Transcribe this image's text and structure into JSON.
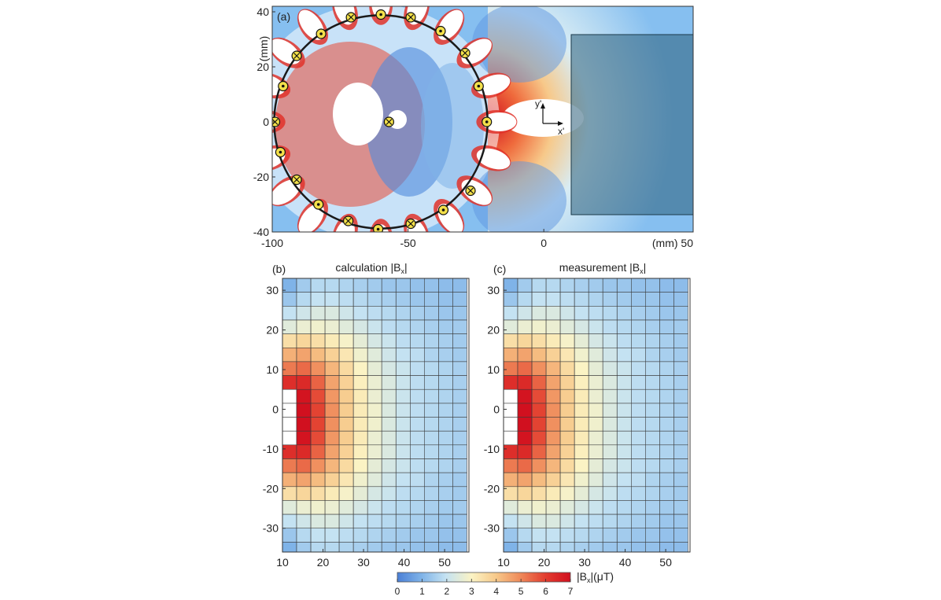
{
  "chart_data": [
    {
      "type": "heatmap",
      "panel_label": "(a)",
      "x_ticks": [
        "-100",
        "-50",
        "0"
      ],
      "x_unit_label": "(mm) 50",
      "y_ticks": [
        "40",
        "20",
        "0",
        "-20",
        "-40"
      ],
      "y_unit_label": "(mm)",
      "xlim": [
        -100,
        55
      ],
      "ylim": [
        -40,
        42
      ],
      "ring": {
        "center": [
          -60,
          0
        ],
        "radius": 39
      },
      "coil_markers": [
        {
          "x": -60,
          "y": 39,
          "kind": "dot"
        },
        {
          "x": -49,
          "y": 38,
          "kind": "cross"
        },
        {
          "x": -38,
          "y": 33,
          "kind": "dot"
        },
        {
          "x": -29,
          "y": 25,
          "kind": "cross"
        },
        {
          "x": -24,
          "y": 13,
          "kind": "dot"
        },
        {
          "x": -21,
          "y": 0,
          "kind": "dot"
        },
        {
          "x": -27,
          "y": -25,
          "kind": "cross"
        },
        {
          "x": -37,
          "y": -32,
          "kind": "dot"
        },
        {
          "x": -49,
          "y": -37,
          "kind": "cross"
        },
        {
          "x": -61,
          "y": -39,
          "kind": "dot"
        },
        {
          "x": -72,
          "y": -36,
          "kind": "cross"
        },
        {
          "x": -83,
          "y": -30,
          "kind": "dot"
        },
        {
          "x": -91,
          "y": -21,
          "kind": "cross"
        },
        {
          "x": -97,
          "y": -11,
          "kind": "dot"
        },
        {
          "x": -99,
          "y": 0,
          "kind": "cross"
        },
        {
          "x": -96,
          "y": 13,
          "kind": "dot"
        },
        {
          "x": -91,
          "y": 24,
          "kind": "cross"
        },
        {
          "x": -82,
          "y": 32,
          "kind": "dot"
        },
        {
          "x": -71,
          "y": 38,
          "kind": "cross"
        },
        {
          "x": -57,
          "y": 0,
          "kind": "cross"
        }
      ],
      "region_box": {
        "x": [
          10,
          55
        ],
        "y": [
          -34,
          32
        ]
      },
      "axis_labels_local": {
        "y": "y'",
        "x": "x'"
      }
    },
    {
      "type": "heatmap",
      "panel_label": "(b)",
      "title": "calculation |B",
      "title_sub": "x",
      "title_end": "|",
      "x_ticks": [
        10,
        20,
        30,
        40,
        50
      ],
      "y_ticks": [
        30,
        20,
        10,
        0,
        -10,
        -20,
        -30
      ],
      "xlim": [
        10,
        56
      ],
      "ylim": [
        -36,
        33
      ],
      "cell_size": 3.5,
      "values": [
        [
          1.0,
          1.5,
          1.8,
          1.8,
          1.7,
          1.6,
          1.5,
          1.4,
          1.4,
          1.3,
          1.3,
          1.2,
          1.2
        ],
        [
          1.4,
          1.8,
          2.0,
          2.0,
          1.9,
          1.8,
          1.7,
          1.6,
          1.5,
          1.4,
          1.4,
          1.3,
          1.3
        ],
        [
          2.0,
          2.2,
          2.4,
          2.4,
          2.2,
          2.0,
          1.9,
          1.8,
          1.7,
          1.6,
          1.5,
          1.4,
          1.4
        ],
        [
          2.5,
          2.7,
          2.8,
          2.7,
          2.5,
          2.3,
          2.1,
          1.9,
          1.8,
          1.7,
          1.6,
          1.5,
          1.5
        ],
        [
          3.5,
          3.7,
          3.5,
          3.2,
          2.9,
          2.6,
          2.3,
          2.1,
          1.9,
          1.8,
          1.7,
          1.6,
          1.5
        ],
        [
          4.4,
          4.6,
          4.2,
          3.8,
          3.3,
          2.8,
          2.5,
          2.2,
          2.0,
          1.9,
          1.7,
          1.6,
          1.5
        ],
        [
          5.2,
          5.4,
          4.9,
          4.3,
          3.6,
          3.0,
          2.6,
          2.3,
          2.1,
          1.9,
          1.8,
          1.7,
          1.6
        ],
        [
          6.3,
          6.4,
          5.5,
          4.6,
          3.8,
          3.1,
          2.7,
          2.4,
          2.1,
          1.9,
          1.8,
          1.7,
          1.6
        ],
        [
          null,
          6.9,
          5.8,
          4.8,
          3.9,
          3.2,
          2.7,
          2.4,
          2.1,
          1.9,
          1.8,
          1.7,
          1.6
        ],
        [
          null,
          7.0,
          5.9,
          4.9,
          3.9,
          3.2,
          2.8,
          2.4,
          2.1,
          1.9,
          1.8,
          1.7,
          1.6
        ],
        [
          null,
          7.0,
          5.9,
          4.9,
          3.9,
          3.2,
          2.8,
          2.4,
          2.1,
          1.9,
          1.8,
          1.7,
          1.6
        ],
        [
          null,
          6.9,
          5.8,
          4.8,
          3.9,
          3.2,
          2.7,
          2.4,
          2.1,
          1.9,
          1.8,
          1.7,
          1.6
        ],
        [
          6.3,
          6.4,
          5.5,
          4.6,
          3.8,
          3.1,
          2.7,
          2.4,
          2.1,
          1.9,
          1.8,
          1.7,
          1.6
        ],
        [
          5.2,
          5.4,
          4.9,
          4.3,
          3.6,
          3.0,
          2.6,
          2.3,
          2.1,
          1.9,
          1.8,
          1.7,
          1.6
        ],
        [
          4.4,
          4.6,
          4.2,
          3.8,
          3.3,
          2.8,
          2.5,
          2.2,
          2.0,
          1.9,
          1.7,
          1.6,
          1.5
        ],
        [
          3.5,
          3.7,
          3.5,
          3.2,
          2.9,
          2.6,
          2.3,
          2.1,
          1.9,
          1.8,
          1.7,
          1.6,
          1.5
        ],
        [
          2.5,
          2.7,
          2.8,
          2.7,
          2.5,
          2.3,
          2.1,
          1.9,
          1.8,
          1.7,
          1.6,
          1.5,
          1.5
        ],
        [
          2.0,
          2.2,
          2.4,
          2.4,
          2.2,
          2.0,
          1.9,
          1.8,
          1.7,
          1.6,
          1.5,
          1.4,
          1.4
        ],
        [
          1.4,
          1.8,
          2.0,
          2.0,
          1.9,
          1.8,
          1.7,
          1.6,
          1.5,
          1.4,
          1.4,
          1.3,
          1.3
        ],
        [
          1.0,
          1.5,
          1.8,
          1.8,
          1.7,
          1.6,
          1.5,
          1.4,
          1.4,
          1.3,
          1.3,
          1.2,
          1.2
        ]
      ]
    },
    {
      "type": "heatmap",
      "panel_label": "(c)",
      "title": "measurement |B",
      "title_sub": "x",
      "title_end": "|",
      "x_ticks": [
        10,
        20,
        30,
        40,
        50
      ],
      "y_ticks": [
        30,
        20,
        10,
        0,
        -10,
        -20,
        -30
      ],
      "xlim": [
        10,
        56
      ],
      "ylim": [
        -36,
        33
      ],
      "cell_size": 3.5,
      "values": [
        [
          1.0,
          1.5,
          1.8,
          1.8,
          1.7,
          1.6,
          1.5,
          1.4,
          1.4,
          1.3,
          1.3,
          1.2,
          1.2
        ],
        [
          1.4,
          1.8,
          2.0,
          2.0,
          1.9,
          1.8,
          1.7,
          1.6,
          1.5,
          1.4,
          1.4,
          1.3,
          1.3
        ],
        [
          2.0,
          2.2,
          2.4,
          2.4,
          2.2,
          2.0,
          1.9,
          1.8,
          1.7,
          1.6,
          1.5,
          1.4,
          1.4
        ],
        [
          2.5,
          2.7,
          2.8,
          2.7,
          2.5,
          2.3,
          2.1,
          1.9,
          1.8,
          1.7,
          1.6,
          1.5,
          1.5
        ],
        [
          3.5,
          3.7,
          3.5,
          3.2,
          2.9,
          2.6,
          2.3,
          2.1,
          1.9,
          1.8,
          1.7,
          1.6,
          1.5
        ],
        [
          4.4,
          4.6,
          4.2,
          3.8,
          3.3,
          2.8,
          2.5,
          2.2,
          2.0,
          1.9,
          1.7,
          1.6,
          1.5
        ],
        [
          5.2,
          5.4,
          4.9,
          4.3,
          3.6,
          3.0,
          2.6,
          2.3,
          2.1,
          1.9,
          1.8,
          1.7,
          1.6
        ],
        [
          6.3,
          6.4,
          5.5,
          4.6,
          3.8,
          3.1,
          2.7,
          2.4,
          2.1,
          1.9,
          1.8,
          1.7,
          1.6
        ],
        [
          null,
          6.9,
          5.8,
          4.8,
          3.9,
          3.2,
          2.7,
          2.4,
          2.1,
          1.9,
          1.8,
          1.7,
          1.6
        ],
        [
          null,
          7.0,
          5.9,
          4.9,
          3.9,
          3.2,
          2.8,
          2.4,
          2.1,
          1.9,
          1.8,
          1.7,
          1.6
        ],
        [
          null,
          7.0,
          5.9,
          4.9,
          3.9,
          3.2,
          2.8,
          2.4,
          2.1,
          1.9,
          1.8,
          1.7,
          1.6
        ],
        [
          null,
          6.9,
          5.8,
          4.8,
          3.9,
          3.2,
          2.7,
          2.4,
          2.1,
          1.9,
          1.8,
          1.7,
          1.6
        ],
        [
          6.3,
          6.4,
          5.5,
          4.6,
          3.8,
          3.1,
          2.7,
          2.4,
          2.1,
          1.9,
          1.8,
          1.7,
          1.6
        ],
        [
          5.2,
          5.4,
          4.9,
          4.3,
          3.6,
          3.0,
          2.6,
          2.3,
          2.1,
          1.9,
          1.8,
          1.7,
          1.6
        ],
        [
          4.4,
          4.6,
          4.2,
          3.8,
          3.3,
          2.8,
          2.5,
          2.2,
          2.0,
          1.9,
          1.7,
          1.6,
          1.5
        ],
        [
          3.5,
          3.7,
          3.5,
          3.2,
          2.9,
          2.6,
          2.3,
          2.1,
          1.9,
          1.8,
          1.7,
          1.6,
          1.5
        ],
        [
          2.5,
          2.7,
          2.8,
          2.7,
          2.5,
          2.3,
          2.1,
          1.9,
          1.8,
          1.7,
          1.6,
          1.5,
          1.5
        ],
        [
          2.0,
          2.2,
          2.4,
          2.4,
          2.2,
          2.0,
          1.9,
          1.8,
          1.7,
          1.6,
          1.5,
          1.4,
          1.4
        ],
        [
          1.4,
          1.8,
          2.0,
          2.0,
          1.9,
          1.8,
          1.7,
          1.6,
          1.5,
          1.4,
          1.4,
          1.3,
          1.3
        ],
        [
          1.0,
          1.5,
          1.8,
          1.8,
          1.7,
          1.6,
          1.5,
          1.4,
          1.4,
          1.3,
          1.3,
          1.2,
          1.2
        ]
      ]
    }
  ],
  "colorbar": {
    "ticks": [
      "0",
      "1",
      "2",
      "3",
      "4",
      "5",
      "6",
      "7"
    ],
    "range": [
      0,
      7
    ],
    "label_prefix": "|B",
    "label_sub": "x",
    "label_suffix": "|(μT)",
    "colors": [
      "#4a7fd6",
      "#7fb3e8",
      "#c4e2f2",
      "#fbf3c4",
      "#f7c98a",
      "#ef8a5a",
      "#e23b2e",
      "#d1101f"
    ]
  }
}
